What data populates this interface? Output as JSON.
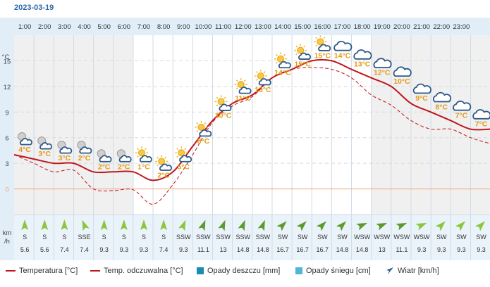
{
  "date": "2023-03-19",
  "chart_data": {
    "type": "line",
    "hours": [
      "1:00",
      "2:00",
      "3:00",
      "4:00",
      "5:00",
      "6:00",
      "7:00",
      "8:00",
      "9:00",
      "10:00",
      "11:00",
      "12:00",
      "13:00",
      "14:00",
      "15:00",
      "16:00",
      "17:00",
      "18:00",
      "19:00",
      "20:00",
      "21:00",
      "22:00",
      "23:00"
    ],
    "y_unit": "°C",
    "y_ticks": [
      0,
      3,
      6,
      9,
      12,
      15
    ],
    "ylim": [
      -3,
      18
    ],
    "x_data": [
      0,
      1,
      2,
      3,
      4,
      5,
      6,
      7,
      8,
      9,
      10,
      11,
      12,
      13,
      14,
      15,
      16,
      17,
      18,
      19,
      20,
      21,
      22,
      23,
      24
    ],
    "temperature": [
      4,
      3.5,
      3,
      3,
      2,
      2,
      2,
      1,
      2,
      5,
      8,
      10,
      11,
      13,
      14,
      15,
      15,
      14,
      13,
      12,
      10,
      9,
      8,
      7,
      7
    ],
    "feels_like": [
      4,
      3,
      2,
      2.2,
      0,
      -0.2,
      -0.1,
      -1.8,
      0.5,
      4,
      7.8,
      9.7,
      10.8,
      13,
      14,
      14.2,
      14,
      13,
      11,
      9.8,
      8,
      7,
      7,
      6,
      5.3
    ],
    "icons": [
      {
        "label": "4°C",
        "type": "night-cloud"
      },
      {
        "label": "3°C",
        "type": "night-cloud"
      },
      {
        "label": "3°C",
        "type": "night-cloud"
      },
      {
        "label": "2°C",
        "type": "night-cloud"
      },
      {
        "label": "2°C",
        "type": "night-cloud"
      },
      {
        "label": "2°C",
        "type": "night-cloud"
      },
      {
        "label": "1°C",
        "type": "sun-cloud"
      },
      {
        "label": "2°C",
        "type": "sun-cloud"
      },
      {
        "label": "5°C",
        "type": "sun-cloud"
      },
      {
        "label": "8°C",
        "type": "sun-cloud"
      },
      {
        "label": "10°C",
        "type": "sun-cloud"
      },
      {
        "label": "11°C",
        "type": "sun-cloud"
      },
      {
        "label": "13°C",
        "type": "sun-cloud"
      },
      {
        "label": "14°C",
        "type": "sun-cloud"
      },
      {
        "label": "15°C",
        "type": "sun-cloud"
      },
      {
        "label": "15°C",
        "type": "sun-cloud"
      },
      {
        "label": "14°C",
        "type": "cloud"
      },
      {
        "label": "13°C",
        "type": "cloud"
      },
      {
        "label": "12°C",
        "type": "cloud"
      },
      {
        "label": "10°C",
        "type": "cloud"
      },
      {
        "label": "9°C",
        "type": "cloud"
      },
      {
        "label": "8°C",
        "type": "cloud"
      },
      {
        "label": "7°C",
        "type": "cloud"
      },
      {
        "label": "7°C",
        "type": "cloud"
      }
    ],
    "wind": [
      {
        "dir": "S",
        "speed": "5.6",
        "deg": 0
      },
      {
        "dir": "S",
        "speed": "5.6",
        "deg": 0
      },
      {
        "dir": "S",
        "speed": "7.4",
        "deg": 0
      },
      {
        "dir": "SSE",
        "speed": "7.4",
        "deg": -22
      },
      {
        "dir": "S",
        "speed": "9.3",
        "deg": 0
      },
      {
        "dir": "S",
        "speed": "9.3",
        "deg": 0
      },
      {
        "dir": "S",
        "speed": "9.3",
        "deg": 0
      },
      {
        "dir": "S",
        "speed": "7.4",
        "deg": 0
      },
      {
        "dir": "SSW",
        "speed": "9.3",
        "deg": 22
      },
      {
        "dir": "SSW",
        "speed": "11.1",
        "deg": 22
      },
      {
        "dir": "SSW",
        "speed": "13",
        "deg": 22
      },
      {
        "dir": "SSW",
        "speed": "14.8",
        "deg": 22
      },
      {
        "dir": "SSW",
        "speed": "14.8",
        "deg": 22
      },
      {
        "dir": "SW",
        "speed": "16.7",
        "deg": 45
      },
      {
        "dir": "SW",
        "speed": "16.7",
        "deg": 45
      },
      {
        "dir": "SW",
        "speed": "16.7",
        "deg": 45
      },
      {
        "dir": "SW",
        "speed": "14.8",
        "deg": 45
      },
      {
        "dir": "WSW",
        "speed": "14.8",
        "deg": 67
      },
      {
        "dir": "WSW",
        "speed": "13",
        "deg": 67
      },
      {
        "dir": "WSW",
        "speed": "11.1",
        "deg": 67
      },
      {
        "dir": "WSW",
        "speed": "9.3",
        "deg": 67
      },
      {
        "dir": "SW",
        "speed": "9.3",
        "deg": 45
      },
      {
        "dir": "SW",
        "speed": "9.3",
        "deg": 45
      },
      {
        "dir": "SW",
        "speed": "9.3",
        "deg": 45
      }
    ],
    "wind_unit": "km\n/h"
  },
  "legend": {
    "temperature": "Temperatura [°C]",
    "feels_like": "Temp. odczuwalna [°C]",
    "rain": "Opady deszczu [mm]",
    "snow": "Opady śniegu [cm]",
    "wind": "Wiatr [km/h]"
  },
  "colors": {
    "temperature": "#c0161b",
    "rain": "#1a8cb4",
    "snow": "#4fb6d6",
    "label": "#e39a16",
    "axis_blue": "#e1eef8",
    "night": "#f0f0f0",
    "wind_arrow": "#8cc63e",
    "wind_arrow_strong": "#5d9a2d"
  }
}
